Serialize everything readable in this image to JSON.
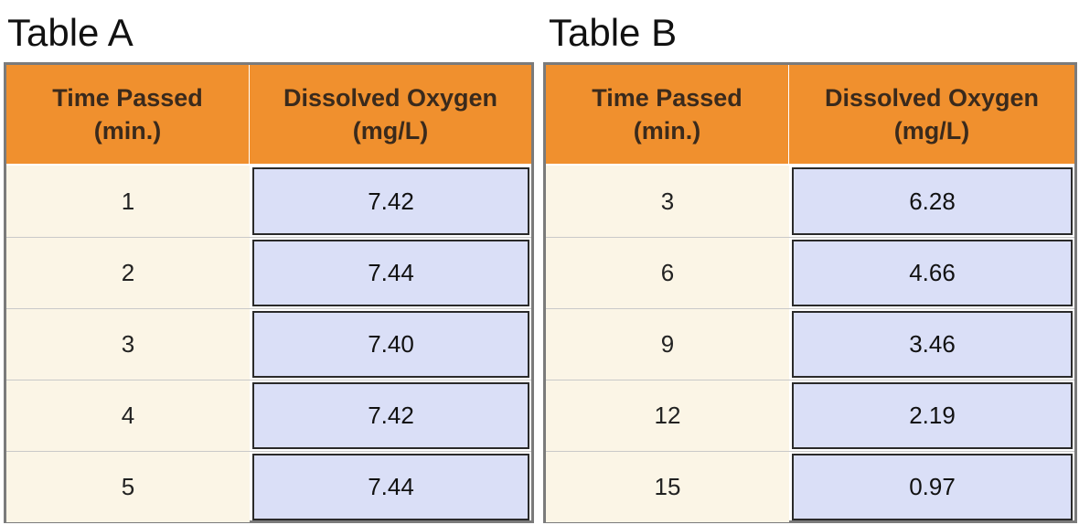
{
  "table_a": {
    "title": "Table A",
    "headers": {
      "time_line1": "Time Passed",
      "time_line2": "(min.)",
      "oxygen_line1": "Dissolved Oxygen",
      "oxygen_line2": "(mg/L)"
    },
    "rows": [
      {
        "time": "1",
        "oxygen": "7.42"
      },
      {
        "time": "2",
        "oxygen": "7.44"
      },
      {
        "time": "3",
        "oxygen": "7.40"
      },
      {
        "time": "4",
        "oxygen": "7.42"
      },
      {
        "time": "5",
        "oxygen": "7.44"
      }
    ]
  },
  "table_b": {
    "title": "Table B",
    "headers": {
      "time_line1": "Time Passed",
      "time_line2": "(min.)",
      "oxygen_line1": "Dissolved Oxygen",
      "oxygen_line2": "(mg/L)"
    },
    "rows": [
      {
        "time": "3",
        "oxygen": "6.28"
      },
      {
        "time": "6",
        "oxygen": "4.66"
      },
      {
        "time": "9",
        "oxygen": "3.46"
      },
      {
        "time": "12",
        "oxygen": "2.19"
      },
      {
        "time": "15",
        "oxygen": "0.97"
      }
    ]
  },
  "colors": {
    "header_bg": "#f0902e",
    "time_cell_bg": "#fbf5e6",
    "oxygen_cell_bg": "#dadff7"
  }
}
